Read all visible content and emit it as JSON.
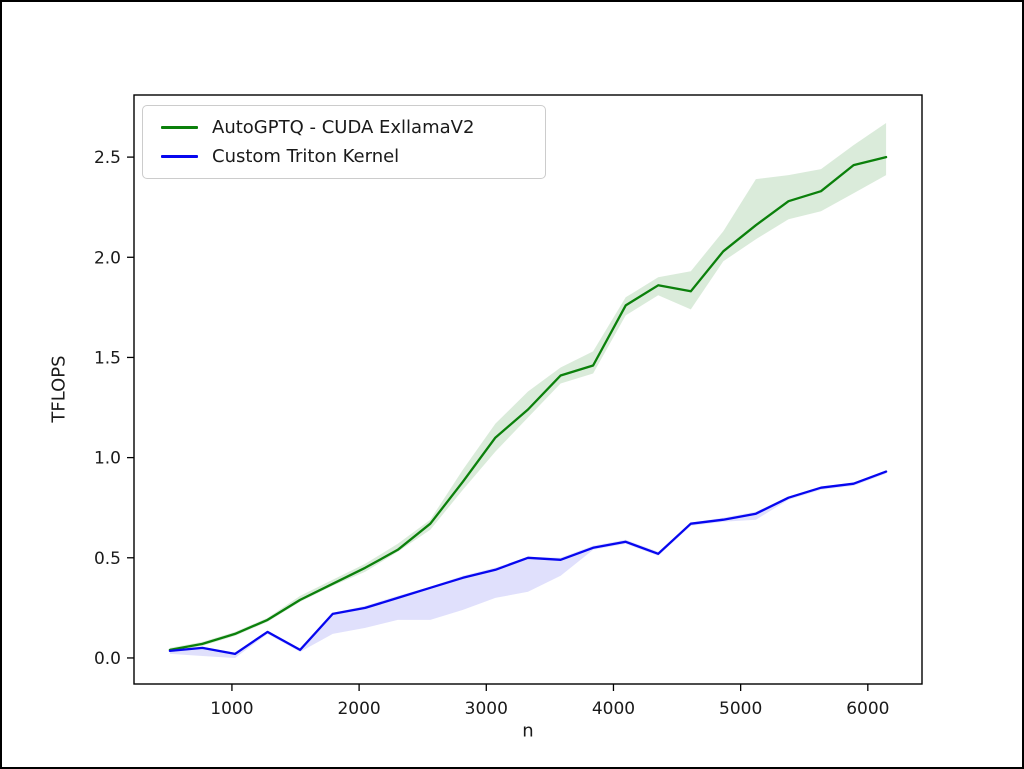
{
  "figure": {
    "background": "#ffffff",
    "frame_color": "#000000",
    "spine_color": "#000000"
  },
  "chart_data": {
    "type": "line",
    "title": "",
    "xlabel": "n",
    "ylabel": "TFLOPS",
    "xlim": [
      230,
      6426
    ],
    "ylim": [
      -0.13,
      2.81
    ],
    "x_ticks": [
      1000,
      2000,
      3000,
      4000,
      5000,
      6000
    ],
    "y_ticks": [
      0.0,
      0.5,
      1.0,
      1.5,
      2.0,
      2.5
    ],
    "grid": false,
    "legend_position": "upper-left",
    "x": [
      512,
      768,
      1024,
      1280,
      1536,
      1792,
      2048,
      2304,
      2560,
      2816,
      3072,
      3328,
      3584,
      3840,
      4096,
      4352,
      4608,
      4864,
      5120,
      5376,
      5632,
      5888,
      6144
    ],
    "series": [
      {
        "name": "AutoGPTQ - CUDA ExllamaV2",
        "color": "#0b800b",
        "band_color": "rgba(34,139,34,0.17)",
        "values": [
          0.04,
          0.07,
          0.12,
          0.19,
          0.29,
          0.37,
          0.45,
          0.54,
          0.67,
          0.88,
          1.1,
          1.24,
          1.41,
          1.46,
          1.76,
          1.86,
          1.83,
          2.03,
          2.16,
          2.28,
          2.33,
          2.46,
          2.5
        ],
        "band_upper": [
          0.05,
          0.08,
          0.13,
          0.2,
          0.31,
          0.39,
          0.47,
          0.57,
          0.69,
          0.94,
          1.17,
          1.33,
          1.45,
          1.53,
          1.8,
          1.9,
          1.93,
          2.13,
          2.39,
          2.41,
          2.44,
          2.56,
          2.67
        ],
        "band_lower": [
          0.03,
          0.06,
          0.11,
          0.18,
          0.28,
          0.36,
          0.43,
          0.53,
          0.64,
          0.84,
          1.03,
          1.2,
          1.37,
          1.42,
          1.71,
          1.81,
          1.74,
          1.98,
          2.09,
          2.19,
          2.23,
          2.32,
          2.41
        ]
      },
      {
        "name": "Custom Triton Kernel",
        "color": "#0707ef",
        "band_color": "rgba(85,85,240,0.18)",
        "values": [
          0.035,
          0.05,
          0.02,
          0.13,
          0.04,
          0.22,
          0.25,
          0.3,
          0.35,
          0.4,
          0.44,
          0.5,
          0.49,
          0.55,
          0.58,
          0.52,
          0.67,
          0.69,
          0.72,
          0.8,
          0.85,
          0.87,
          0.93
        ],
        "band_upper": [
          0.04,
          0.055,
          0.025,
          0.135,
          0.045,
          0.225,
          0.26,
          0.31,
          0.355,
          0.41,
          0.45,
          0.505,
          0.5,
          0.56,
          0.59,
          0.53,
          0.675,
          0.7,
          0.73,
          0.805,
          0.855,
          0.875,
          0.935
        ],
        "band_lower": [
          0.02,
          0.01,
          0.0,
          0.12,
          0.03,
          0.12,
          0.15,
          0.19,
          0.19,
          0.24,
          0.3,
          0.33,
          0.41,
          0.54,
          0.57,
          0.51,
          0.66,
          0.68,
          0.69,
          0.79,
          0.84,
          0.86,
          0.92
        ]
      }
    ]
  }
}
